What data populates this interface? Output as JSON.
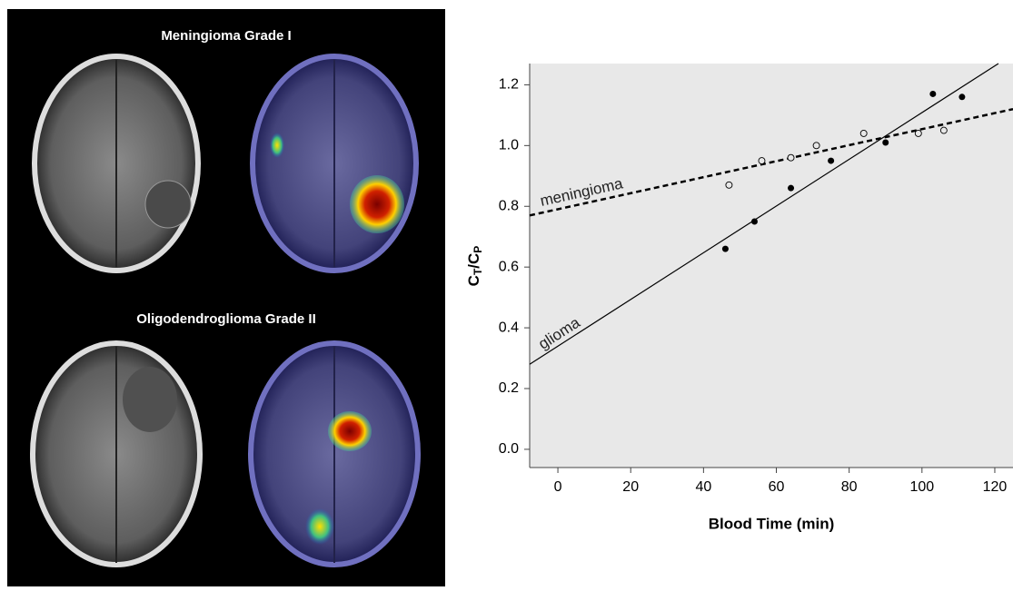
{
  "panel_titles": [
    "Meningioma Grade I",
    "Oligodendroglioma Grade II"
  ],
  "chart_data": {
    "type": "scatter",
    "xlabel": "Blood Time (min)",
    "ylabel_parts": [
      "C",
      "T",
      "/C",
      "P"
    ],
    "xlim": [
      -7.75,
      125
    ],
    "ylim": [
      -0.06,
      1.27
    ],
    "xticks": [
      0,
      20,
      40,
      60,
      80,
      100,
      120
    ],
    "yticks": [
      {
        "value": 0,
        "label": "0.0"
      },
      0.2,
      0.4,
      0.6,
      0.8,
      {
        "value": 1,
        "label": "1.0"
      },
      1.2
    ],
    "background": "#e8e8e8",
    "series": [
      {
        "name": "meningioma",
        "marker": "open",
        "line_style": "dashed",
        "color": "#000000",
        "x": [
          47,
          56,
          64,
          71,
          84,
          99,
          106
        ],
        "values": [
          0.87,
          0.95,
          0.96,
          1.0,
          1.04,
          1.04,
          1.05
        ],
        "fit": {
          "x": [
            -7.75,
            125
          ],
          "values": [
            0.77,
            1.12
          ]
        }
      },
      {
        "name": "glioma",
        "marker": "filled",
        "line_style": "solid",
        "color": "#000000",
        "x": [
          46,
          54,
          64,
          75,
          90,
          103,
          111
        ],
        "values": [
          0.66,
          0.75,
          0.86,
          0.95,
          1.01,
          1.17,
          1.16
        ],
        "fit": {
          "x": [
            -7.75,
            121
          ],
          "values": [
            0.28,
            1.27
          ]
        }
      }
    ]
  }
}
